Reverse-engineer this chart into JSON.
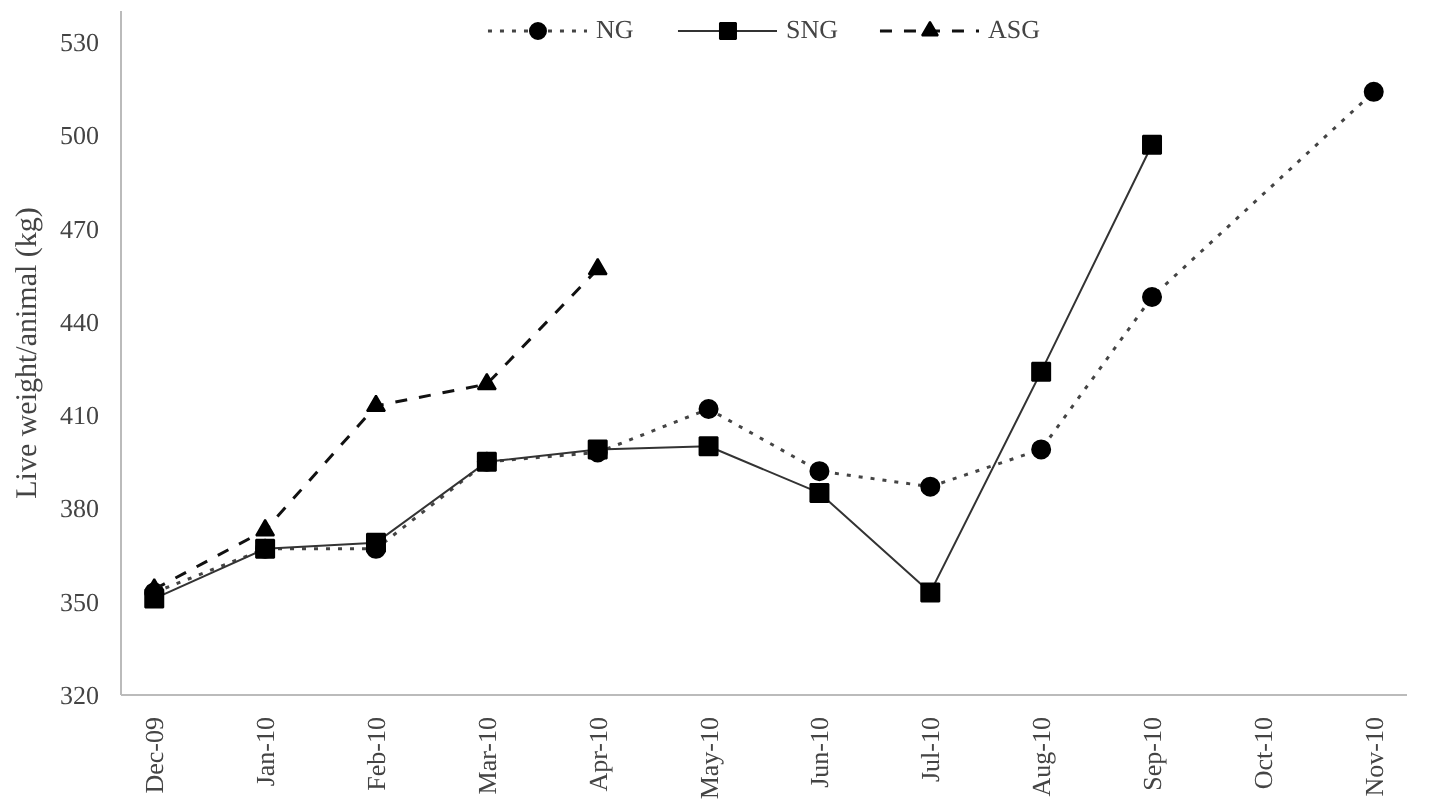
{
  "chart_data": {
    "type": "line",
    "ylabel": "Live weight/animal (kg)",
    "categories": [
      "Dec-09",
      "Jan-10",
      "Feb-10",
      "Mar-10",
      "Apr-10",
      "May-10",
      "Jun-10",
      "Jul-10",
      "Aug-10",
      "Sep-10",
      "Oct-10",
      "Nov-10"
    ],
    "series": [
      {
        "name": "NG",
        "color": "#444444",
        "marker": "circle",
        "line_style": "dotted",
        "x": [
          "Dec-09",
          "Jan-10",
          "Feb-10",
          "Mar-10",
          "Apr-10",
          "May-10",
          "Jun-10",
          "Jul-10",
          "Aug-10",
          "Sep-10",
          "Nov-10"
        ],
        "values": [
          353,
          367,
          367,
          395,
          398,
          412,
          392,
          387,
          399,
          448,
          514
        ]
      },
      {
        "name": "SNG",
        "color": "#333333",
        "marker": "square",
        "line_style": "solid",
        "values": [
          351,
          367,
          369,
          395,
          399,
          400,
          385,
          353,
          424,
          497,
          null,
          null
        ]
      },
      {
        "name": "ASG",
        "color": "#111111",
        "marker": "triangle",
        "line_style": "dashed",
        "values": [
          354,
          373,
          413,
          420,
          457,
          null,
          null,
          null,
          null,
          null,
          null,
          null
        ]
      }
    ],
    "ylim": [
      320,
      540
    ],
    "yticks": [
      320,
      350,
      380,
      410,
      440,
      470,
      500,
      530
    ],
    "grid": false,
    "legend": "top"
  }
}
